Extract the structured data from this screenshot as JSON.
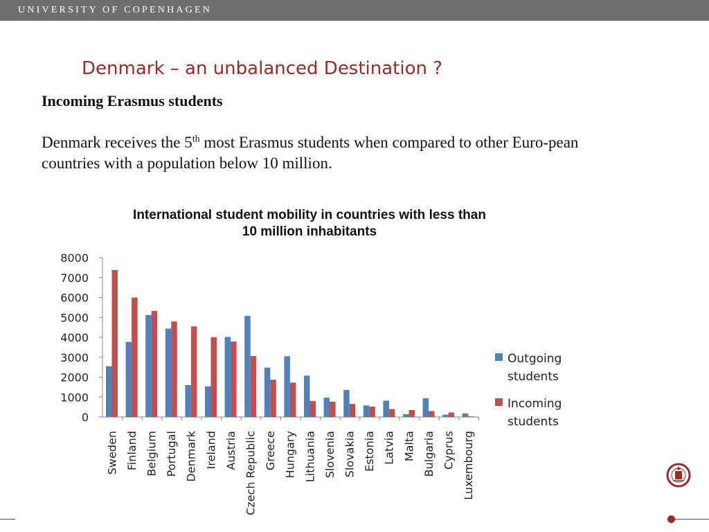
{
  "header": {
    "org": "UNIVERSITY OF COPENHAGEN"
  },
  "slide": {
    "title": "Denmark – an unbalanced Destination ?",
    "subheading": "Incoming Erasmus students",
    "body_before": "Denmark receives the 5",
    "body_sup": "th",
    "body_after": " most Erasmus students when compared to other Euro-pean countries with a population below 10 million."
  },
  "colors": {
    "accent": "#9b2a22",
    "outgoing": "#4f81bd",
    "incoming": "#c0504d",
    "header": "#6f6f6f"
  },
  "icons": {
    "seal": "university-seal-icon"
  },
  "chart_data": {
    "type": "bar",
    "title": "International student mobility in countries with less than 10 million inhabitants",
    "title_lines": [
      "International student mobility in countries with less than",
      "10 million inhabitants"
    ],
    "categories": [
      "Sweden",
      "Finland",
      "Belgium",
      "Portugal",
      "Denmark",
      "Ireland",
      "Austria",
      "Czech Republic",
      "Greece",
      "Hungary",
      "Lithuania",
      "Slovenia",
      "Slovakia",
      "Estonia",
      "Latvia",
      "Malta",
      "Bulgaria",
      "Cyprus",
      "Luxembourg"
    ],
    "series": [
      {
        "name": "Outgoing students",
        "name_lines": [
          "Outgoing",
          "students"
        ],
        "values": [
          2550,
          3770,
          5120,
          4440,
          1600,
          1540,
          4020,
          5080,
          2480,
          3050,
          2080,
          970,
          1360,
          580,
          820,
          140,
          940,
          120,
          180
        ]
      },
      {
        "name": "Incoming students",
        "name_lines": [
          "Incoming",
          "students"
        ],
        "values": [
          7380,
          6000,
          5330,
          4800,
          4550,
          4010,
          3790,
          3060,
          1870,
          1730,
          810,
          770,
          660,
          520,
          400,
          350,
          300,
          230,
          30
        ]
      }
    ],
    "yticks": [
      "0",
      "1000",
      "2000",
      "3000",
      "4000",
      "5000",
      "6000",
      "7000",
      "8000"
    ],
    "ylim": [
      0,
      8000
    ],
    "xlabel": "",
    "ylabel": "",
    "grid": false,
    "legend": "right"
  }
}
